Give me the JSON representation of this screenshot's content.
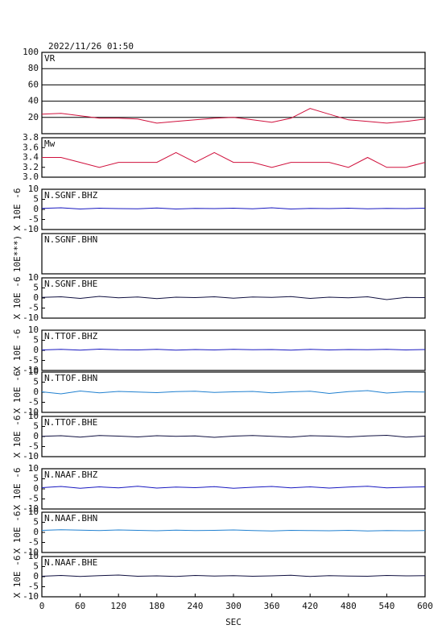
{
  "title": "2022/11/26  01:50",
  "chart_data": [
    {
      "type": "line",
      "ylabel": null,
      "grid": true,
      "xlim": [
        0,
        600
      ],
      "ylim": [
        0,
        100
      ],
      "yticks": [
        20,
        40,
        60,
        80,
        100
      ],
      "x": [
        0,
        30,
        60,
        90,
        120,
        150,
        180,
        210,
        240,
        270,
        300,
        330,
        360,
        390,
        420,
        450,
        480,
        510,
        540,
        570,
        600
      ],
      "series": [
        {
          "name": "VR",
          "color": "#d0103c",
          "values": [
            24,
            25,
            22,
            19,
            19,
            18,
            13,
            15,
            17,
            19,
            20,
            17,
            14,
            19,
            31,
            24,
            17,
            15,
            13,
            15,
            18
          ]
        }
      ]
    },
    {
      "type": "line",
      "ylabel": null,
      "grid": false,
      "xlim": [
        0,
        600
      ],
      "ylim": [
        3.0,
        3.8
      ],
      "yticks": [
        {
          "value": 3.0,
          "label": "3.0"
        },
        {
          "value": 3.2,
          "label": "3.2"
        },
        {
          "value": 3.4,
          "label": "3.4"
        },
        {
          "value": 3.6,
          "label": "3.6"
        },
        {
          "value": 3.8,
          "label": "3.8"
        }
      ],
      "x": [
        0,
        30,
        60,
        90,
        120,
        150,
        180,
        210,
        240,
        270,
        300,
        330,
        360,
        390,
        420,
        450,
        480,
        510,
        540,
        570,
        600
      ],
      "series": [
        {
          "name": "Mw",
          "color": "#d0103c",
          "values": [
            3.4,
            3.4,
            3.3,
            3.2,
            3.3,
            3.3,
            3.3,
            3.5,
            3.3,
            3.5,
            3.3,
            3.3,
            3.2,
            3.3,
            3.3,
            3.3,
            3.2,
            3.4,
            3.2,
            3.2,
            3.3
          ]
        }
      ]
    },
    {
      "type": "line",
      "ylabel": "X 10E -6",
      "grid": false,
      "xlim": [
        0,
        600
      ],
      "ylim": [
        -10,
        10
      ],
      "yticks": [
        -10,
        -5,
        0,
        5,
        10
      ],
      "x": [
        0,
        30,
        60,
        90,
        120,
        150,
        180,
        210,
        240,
        270,
        300,
        330,
        360,
        390,
        420,
        450,
        480,
        510,
        540,
        570,
        600
      ],
      "series": [
        {
          "name": "N.SGNF.BHZ",
          "color": "#1818c0",
          "values": [
            0.5,
            0.8,
            0.2,
            0.6,
            0.4,
            0.3,
            0.7,
            0.2,
            0.5,
            0.4,
            0.6,
            0.3,
            0.8,
            0.2,
            0.5,
            0.4,
            0.6,
            0.3,
            0.5,
            0.4,
            0.6
          ]
        }
      ]
    },
    {
      "type": "line",
      "ylabel": "10E***)",
      "grid": false,
      "series": [
        {
          "name": "N.SGNF.BHN",
          "color": "#2080d0",
          "values": []
        }
      ]
    },
    {
      "type": "line",
      "ylabel": "X 10E -6",
      "grid": false,
      "xlim": [
        0,
        600
      ],
      "ylim": [
        -10,
        10
      ],
      "yticks": [
        -10,
        -5,
        0,
        5,
        10
      ],
      "x": [
        0,
        30,
        60,
        90,
        120,
        150,
        180,
        210,
        240,
        270,
        300,
        330,
        360,
        390,
        420,
        450,
        480,
        510,
        540,
        570,
        600
      ],
      "series": [
        {
          "name": "N.SGNF.BHE",
          "color": "#101040",
          "values": [
            0.3,
            0.6,
            -0.2,
            0.8,
            0.1,
            0.5,
            -0.3,
            0.4,
            0.2,
            0.6,
            -0.1,
            0.5,
            0.3,
            0.7,
            -0.2,
            0.4,
            0.1,
            0.6,
            -0.8,
            0.3,
            0.2
          ]
        }
      ]
    },
    {
      "type": "line",
      "ylabel": "X 10E -6",
      "grid": false,
      "xlim": [
        0,
        600
      ],
      "ylim": [
        -10,
        10
      ],
      "yticks": [
        -10,
        -5,
        0,
        5,
        10
      ],
      "x": [
        0,
        30,
        60,
        90,
        120,
        150,
        180,
        210,
        240,
        270,
        300,
        330,
        360,
        390,
        420,
        450,
        480,
        510,
        540,
        570,
        600
      ],
      "series": [
        {
          "name": "N.TTOF.BHZ",
          "color": "#1818c0",
          "values": [
            0.2,
            0.5,
            0.1,
            0.6,
            0.3,
            0.2,
            0.5,
            0.1,
            0.4,
            0.2,
            0.5,
            0.3,
            0.4,
            0.1,
            0.5,
            0.2,
            0.4,
            0.3,
            0.5,
            0.2,
            0.4
          ]
        }
      ]
    },
    {
      "type": "line",
      "ylabel": "X 10E -6",
      "grid": false,
      "xlim": [
        0,
        600
      ],
      "ylim": [
        -10,
        10
      ],
      "yticks": [
        -10,
        -5,
        0,
        5,
        10
      ],
      "x": [
        0,
        30,
        60,
        90,
        120,
        150,
        180,
        210,
        240,
        270,
        300,
        330,
        360,
        390,
        420,
        450,
        480,
        510,
        540,
        570,
        600
      ],
      "series": [
        {
          "name": "N.TTOF.BHN",
          "color": "#2080d0",
          "values": [
            0.2,
            -0.8,
            0.6,
            -0.3,
            0.4,
            0.1,
            -0.2,
            0.3,
            0.5,
            -0.1,
            0.2,
            0.4,
            -0.3,
            0.2,
            0.5,
            -0.6,
            0.3,
            0.8,
            -0.4,
            0.2,
            0.1
          ]
        }
      ]
    },
    {
      "type": "line",
      "ylabel": "X 10E -6",
      "grid": false,
      "xlim": [
        0,
        600
      ],
      "ylim": [
        -10,
        10
      ],
      "yticks": [
        -10,
        -5,
        0,
        5,
        10
      ],
      "x": [
        0,
        30,
        60,
        90,
        120,
        150,
        180,
        210,
        240,
        270,
        300,
        330,
        360,
        390,
        420,
        450,
        480,
        510,
        540,
        570,
        600
      ],
      "series": [
        {
          "name": "N.TTOF.BHE",
          "color": "#101040",
          "values": [
            0.1,
            0.4,
            -0.3,
            0.5,
            0.2,
            -0.2,
            0.4,
            0.1,
            0.3,
            -0.4,
            0.2,
            0.5,
            0.1,
            -0.3,
            0.4,
            0.2,
            -0.2,
            0.3,
            0.6,
            -0.3,
            0.2
          ]
        }
      ]
    },
    {
      "type": "line",
      "ylabel": "X 10E -6",
      "grid": false,
      "xlim": [
        0,
        600
      ],
      "ylim": [
        -10,
        10
      ],
      "yticks": [
        -10,
        -5,
        0,
        5,
        10
      ],
      "x": [
        0,
        30,
        60,
        90,
        120,
        150,
        180,
        210,
        240,
        270,
        300,
        330,
        360,
        390,
        420,
        450,
        480,
        510,
        540,
        570,
        600
      ],
      "series": [
        {
          "name": "N.NAAF.BHZ",
          "color": "#1818c0",
          "values": [
            0.6,
            1.2,
            0.3,
            1.0,
            0.5,
            1.3,
            0.4,
            0.9,
            0.6,
            1.1,
            0.3,
            0.8,
            1.2,
            0.5,
            1.0,
            0.4,
            0.9,
            1.3,
            0.5,
            0.8,
            1.0
          ]
        }
      ]
    },
    {
      "type": "line",
      "ylabel": "X 10E -6",
      "grid": false,
      "xlim": [
        0,
        600
      ],
      "ylim": [
        -10,
        10
      ],
      "yticks": [
        -10,
        -5,
        0,
        5,
        10
      ],
      "x": [
        0,
        30,
        60,
        90,
        120,
        150,
        180,
        210,
        240,
        270,
        300,
        330,
        360,
        390,
        420,
        450,
        480,
        510,
        540,
        570,
        600
      ],
      "series": [
        {
          "name": "N.NAAF.BHN",
          "color": "#2080d0",
          "values": [
            1.0,
            1.3,
            1.1,
            0.9,
            1.2,
            1.0,
            0.8,
            1.1,
            0.9,
            1.0,
            1.2,
            0.9,
            0.7,
            1.0,
            0.9,
            0.8,
            1.0,
            0.7,
            0.9,
            0.8,
            0.9
          ]
        }
      ]
    },
    {
      "type": "line",
      "ylabel": "X 10E -6",
      "grid": false,
      "xlim": [
        0,
        600
      ],
      "ylim": [
        -10,
        10
      ],
      "yticks": [
        -10,
        -5,
        0,
        5,
        10
      ],
      "xticks": [
        0,
        60,
        120,
        180,
        240,
        300,
        360,
        420,
        480,
        540,
        600
      ],
      "xlabel": "SEC",
      "x": [
        0,
        30,
        60,
        90,
        120,
        150,
        180,
        210,
        240,
        270,
        300,
        330,
        360,
        390,
        420,
        450,
        480,
        510,
        540,
        570,
        600
      ],
      "series": [
        {
          "name": "N.NAAF.BHE",
          "color": "#101040",
          "values": [
            0.2,
            0.6,
            0.1,
            0.5,
            0.8,
            0.2,
            0.4,
            0.1,
            0.6,
            0.3,
            0.5,
            0.2,
            0.4,
            0.7,
            0.1,
            0.5,
            0.3,
            0.2,
            0.6,
            0.4,
            0.5
          ]
        }
      ]
    }
  ]
}
